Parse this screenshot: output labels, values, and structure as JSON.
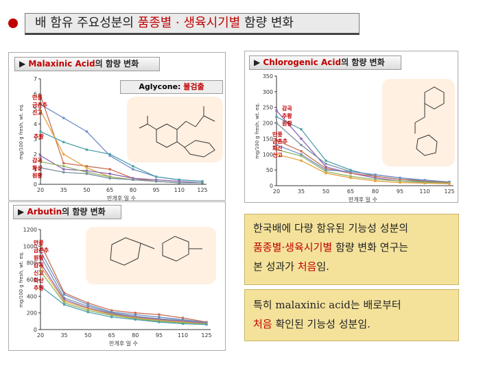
{
  "title": {
    "part1": "배 함유 주요성분의 ",
    "highlight": "품종별 · 생육시기별",
    "part2": " 함량 변화"
  },
  "colors": {
    "accent": "#c00000",
    "textbox": "#f4e29b"
  },
  "panels": {
    "malaxinic": {
      "header_prefix": "▶ ",
      "header_red": "Malaxinic Acid",
      "header_rest": "의 함량 변화",
      "aglycone_prefix": "Aglycone: ",
      "aglycone_value": "불검출",
      "legend_top": [
        "만풍",
        "금촌추",
        "신고"
      ],
      "legend_mid": [
        "추황"
      ],
      "legend_bottom": [
        "감곡",
        "화산",
        "원황"
      ]
    },
    "chlorogenic": {
      "header_prefix": "▶ ",
      "header_red": "Chlorogenic Acid",
      "header_rest": "의 함량 변화",
      "legend_upper": [
        "감곡",
        "추황",
        "원황"
      ],
      "legend_lower": [
        "만풍",
        "금촌추",
        "화산",
        "신고"
      ]
    },
    "arbutin": {
      "header_prefix": "▶ ",
      "header_red": "Arbutin",
      "header_rest": "의 함량 변화",
      "legend": [
        "만풍",
        "금촌추",
        "원황",
        "감곡",
        "신고",
        "화산",
        "추황"
      ]
    }
  },
  "textbox1": {
    "line1": "한국배에 다량 함유된 기능성 성분의",
    "line2_red": "품종별·생육시기별",
    "line2_rest": " 함량 변화 연구는",
    "line3_pre": "본 성과가 ",
    "line3_red": "처음",
    "line3_post": "임."
  },
  "textbox2": {
    "line1": "특히 malaxinic acid는 배로부터",
    "line2_red": "처음",
    "line2_rest": " 확인된 기능성 성분임."
  },
  "chart_data": [
    {
      "type": "line",
      "title": "Malaxinic Acid의 함량 변화",
      "xlabel": "만개후 일 수",
      "ylabel": "mg/100 g fresh, wt. eq.",
      "x": [
        20,
        35,
        50,
        65,
        80,
        95,
        110,
        125
      ],
      "ylim": [
        0,
        7
      ],
      "yticks": [
        0,
        1,
        2,
        3,
        4,
        5,
        6,
        7
      ],
      "series": [
        {
          "name": "만풍",
          "color": "#c86e50",
          "values": [
            5.9,
            1.4,
            1.2,
            1.0,
            0.4,
            0.2,
            0.1,
            0.1
          ]
        },
        {
          "name": "금촌추",
          "color": "#6e8cc8",
          "values": [
            5.3,
            4.4,
            3.5,
            1.9,
            1.0,
            0.5,
            0.3,
            0.2
          ]
        },
        {
          "name": "신고",
          "color": "#e6a03c",
          "values": [
            4.9,
            2.0,
            1.1,
            0.5,
            0.3,
            0.2,
            0.1,
            0.1
          ]
        },
        {
          "name": "추황",
          "color": "#50a0aa",
          "values": [
            3.5,
            2.8,
            2.3,
            2.0,
            1.2,
            0.5,
            0.3,
            0.2
          ]
        },
        {
          "name": "감곡",
          "color": "#8c64b4",
          "values": [
            1.9,
            1.0,
            0.9,
            0.7,
            0.4,
            0.3,
            0.2,
            0.1
          ]
        },
        {
          "name": "화산",
          "color": "#8cb464",
          "values": [
            1.5,
            1.2,
            0.8,
            0.5,
            0.3,
            0.2,
            0.1,
            0.1
          ]
        },
        {
          "name": "원황",
          "color": "#7890a0",
          "values": [
            1.1,
            0.8,
            0.7,
            0.4,
            0.3,
            0.2,
            0.1,
            0.1
          ]
        }
      ]
    },
    {
      "type": "line",
      "title": "Chlorogenic Acid의 함량 변화",
      "xlabel": "만개후 일 수",
      "ylabel": "mg/100 g fresh, wt. eq.",
      "x": [
        20,
        35,
        50,
        65,
        80,
        95,
        110,
        125
      ],
      "ylim": [
        0,
        350
      ],
      "yticks": [
        0,
        50,
        100,
        150,
        200,
        250,
        300,
        350
      ],
      "series": [
        {
          "name": "감곡",
          "color": "#8c64b4",
          "values": [
            240,
            150,
            60,
            40,
            25,
            15,
            10,
            8
          ]
        },
        {
          "name": "추황",
          "color": "#50a0aa",
          "values": [
            220,
            180,
            80,
            50,
            30,
            20,
            12,
            10
          ]
        },
        {
          "name": "원황",
          "color": "#7890a0",
          "values": [
            200,
            130,
            70,
            45,
            35,
            25,
            15,
            12
          ]
        },
        {
          "name": "만풍",
          "color": "#c86e50",
          "values": [
            145,
            110,
            55,
            40,
            30,
            20,
            15,
            10
          ]
        },
        {
          "name": "금촌추",
          "color": "#6e8cc8",
          "values": [
            130,
            100,
            50,
            45,
            35,
            25,
            18,
            12
          ]
        },
        {
          "name": "화산",
          "color": "#8cb464",
          "values": [
            115,
            95,
            45,
            30,
            20,
            15,
            10,
            8
          ]
        },
        {
          "name": "신고",
          "color": "#e6a03c",
          "values": [
            100,
            80,
            40,
            25,
            15,
            10,
            8,
            6
          ]
        }
      ]
    },
    {
      "type": "line",
      "title": "Arbutin의 함량 변화",
      "xlabel": "만개후 일 수",
      "ylabel": "mg/100 g fresh, wt. eq.",
      "x": [
        20,
        35,
        50,
        65,
        80,
        95,
        110,
        125
      ],
      "ylim": [
        0,
        1200
      ],
      "yticks": [
        0,
        200,
        400,
        600,
        800,
        1000,
        1200
      ],
      "series": [
        {
          "name": "만풍",
          "color": "#c86e50",
          "values": [
            1030,
            440,
            320,
            230,
            200,
            180,
            140,
            90
          ]
        },
        {
          "name": "금촌추",
          "color": "#6e8cc8",
          "values": [
            940,
            420,
            300,
            210,
            180,
            150,
            120,
            85
          ]
        },
        {
          "name": "원황",
          "color": "#7890a0",
          "values": [
            880,
            380,
            280,
            200,
            160,
            130,
            110,
            80
          ]
        },
        {
          "name": "감곡",
          "color": "#8c64b4",
          "values": [
            800,
            360,
            260,
            190,
            150,
            120,
            100,
            75
          ]
        },
        {
          "name": "신고",
          "color": "#e6a03c",
          "values": [
            760,
            340,
            250,
            180,
            140,
            110,
            90,
            70
          ]
        },
        {
          "name": "화산",
          "color": "#8cb464",
          "values": [
            700,
            320,
            230,
            170,
            130,
            100,
            80,
            65
          ]
        },
        {
          "name": "추황",
          "color": "#50a0aa",
          "values": [
            520,
            300,
            210,
            150,
            120,
            90,
            70,
            60
          ]
        }
      ]
    }
  ]
}
